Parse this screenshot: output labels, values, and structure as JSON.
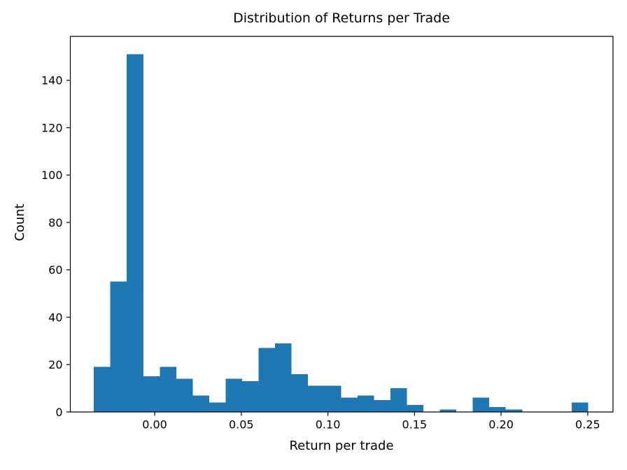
{
  "chart_data": {
    "type": "bar",
    "subtype": "histogram",
    "title": "Distribution of Returns per Trade",
    "xlabel": "Return per trade",
    "ylabel": "Count",
    "bin_start": -0.0351,
    "bin_width": 0.009511,
    "counts": [
      19,
      55,
      151,
      15,
      19,
      14,
      7,
      4,
      14,
      13,
      27,
      29,
      16,
      11,
      11,
      6,
      7,
      5,
      10,
      3,
      0,
      1,
      0,
      6,
      2,
      1,
      0,
      0,
      0,
      4
    ],
    "xlim": [
      -0.0487,
      0.2646
    ],
    "ylim": [
      0,
      158.55
    ],
    "xticks": [
      0.0,
      0.05,
      0.1,
      0.15,
      0.2,
      0.25
    ],
    "xtick_labels": [
      "0.00",
      "0.05",
      "0.10",
      "0.15",
      "0.20",
      "0.25"
    ],
    "yticks": [
      0,
      20,
      40,
      60,
      80,
      100,
      120,
      140
    ],
    "ytick_labels": [
      "0",
      "20",
      "40",
      "60",
      "80",
      "100",
      "120",
      "140"
    ],
    "grid": false,
    "legend": null,
    "colors": {
      "bar": "#1f77b4",
      "spine": "#000000",
      "text": "#000000",
      "background": "#ffffff"
    }
  }
}
